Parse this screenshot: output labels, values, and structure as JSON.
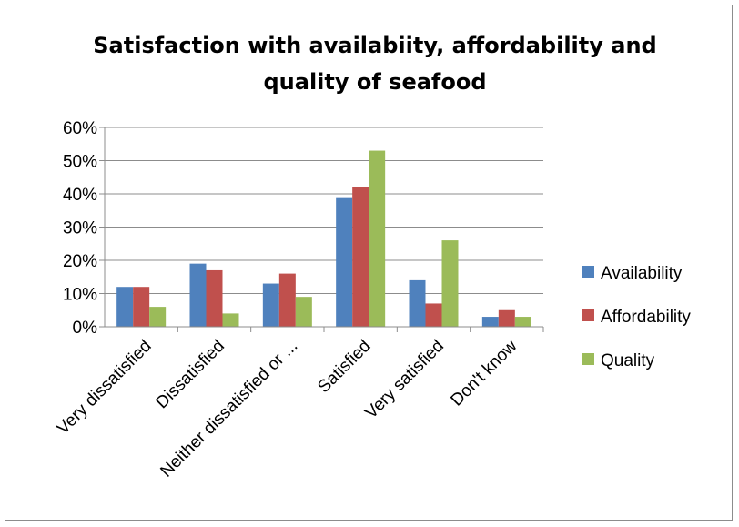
{
  "chart_data": {
    "type": "bar",
    "title_lines": [
      "Satisfaction with availabiity, affordability and",
      "quality of seafood"
    ],
    "categories": [
      "Very dissatisfied",
      "Dissatisfied",
      "Neither dissatisfied or ...",
      "Satisfied",
      "Very satisfied",
      "Don't know"
    ],
    "series": [
      {
        "name": "Availability",
        "color": "#4f81bd",
        "values": [
          12,
          19,
          13,
          39,
          14,
          3
        ]
      },
      {
        "name": "Affordability",
        "color": "#c0504d",
        "values": [
          12,
          17,
          16,
          42,
          7,
          5
        ]
      },
      {
        "name": "Quality",
        "color": "#9bbb59",
        "values": [
          6,
          4,
          9,
          53,
          26,
          3
        ]
      }
    ],
    "yticks": [
      "0%",
      "10%",
      "20%",
      "30%",
      "40%",
      "50%",
      "60%"
    ],
    "ylim": [
      0,
      60
    ],
    "grid": true,
    "legend_position": "right"
  }
}
